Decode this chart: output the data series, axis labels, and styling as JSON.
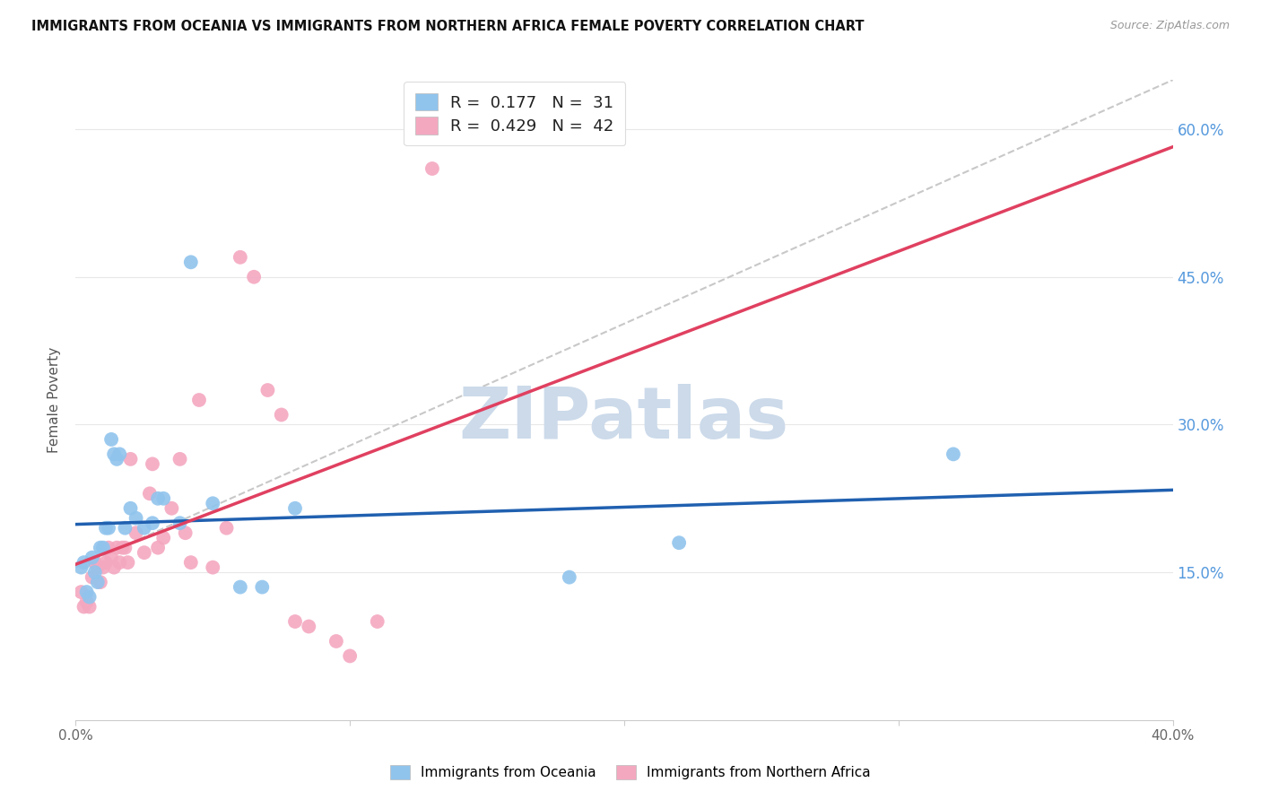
{
  "title": "IMMIGRANTS FROM OCEANIA VS IMMIGRANTS FROM NORTHERN AFRICA FEMALE POVERTY CORRELATION CHART",
  "source": "Source: ZipAtlas.com",
  "ylabel": "Female Poverty",
  "ytick_labels": [
    "15.0%",
    "30.0%",
    "45.0%",
    "60.0%"
  ],
  "ytick_values": [
    0.15,
    0.3,
    0.45,
    0.6
  ],
  "xlim": [
    0.0,
    0.4
  ],
  "ylim": [
    0.0,
    0.65
  ],
  "color_oceania": "#90c4ed",
  "color_northern_africa": "#f4a8c0",
  "line_color_oceania": "#2060b0",
  "line_color_northern_africa": "#e04060",
  "dashed_line_color": "#c8c8c8",
  "watermark_text": "ZIPatlas",
  "watermark_color": "#ccdaea",
  "background_color": "#ffffff",
  "grid_color": "#e8e8e8",
  "oceania_x": [
    0.002,
    0.003,
    0.004,
    0.005,
    0.006,
    0.007,
    0.008,
    0.009,
    0.01,
    0.011,
    0.012,
    0.013,
    0.014,
    0.015,
    0.016,
    0.018,
    0.02,
    0.022,
    0.025,
    0.028,
    0.03,
    0.032,
    0.038,
    0.042,
    0.05,
    0.06,
    0.068,
    0.08,
    0.18,
    0.22,
    0.32
  ],
  "oceania_y": [
    0.155,
    0.16,
    0.13,
    0.125,
    0.165,
    0.15,
    0.14,
    0.175,
    0.175,
    0.195,
    0.195,
    0.285,
    0.27,
    0.265,
    0.27,
    0.195,
    0.215,
    0.205,
    0.195,
    0.2,
    0.225,
    0.225,
    0.2,
    0.465,
    0.22,
    0.135,
    0.135,
    0.215,
    0.145,
    0.18,
    0.27
  ],
  "north_africa_x": [
    0.002,
    0.003,
    0.004,
    0.005,
    0.006,
    0.007,
    0.008,
    0.009,
    0.01,
    0.011,
    0.012,
    0.013,
    0.014,
    0.015,
    0.016,
    0.017,
    0.018,
    0.019,
    0.02,
    0.022,
    0.025,
    0.027,
    0.028,
    0.03,
    0.032,
    0.035,
    0.038,
    0.04,
    0.042,
    0.045,
    0.05,
    0.055,
    0.06,
    0.065,
    0.07,
    0.075,
    0.08,
    0.085,
    0.095,
    0.1,
    0.11,
    0.13
  ],
  "north_africa_y": [
    0.13,
    0.115,
    0.12,
    0.115,
    0.145,
    0.16,
    0.155,
    0.14,
    0.155,
    0.16,
    0.175,
    0.165,
    0.155,
    0.175,
    0.16,
    0.175,
    0.175,
    0.16,
    0.265,
    0.19,
    0.17,
    0.23,
    0.26,
    0.175,
    0.185,
    0.215,
    0.265,
    0.19,
    0.16,
    0.325,
    0.155,
    0.195,
    0.47,
    0.45,
    0.335,
    0.31,
    0.1,
    0.095,
    0.08,
    0.065,
    0.1,
    0.56
  ],
  "legend_line1_r": "0.177",
  "legend_line1_n": "31",
  "legend_line2_r": "0.429",
  "legend_line2_n": "42"
}
